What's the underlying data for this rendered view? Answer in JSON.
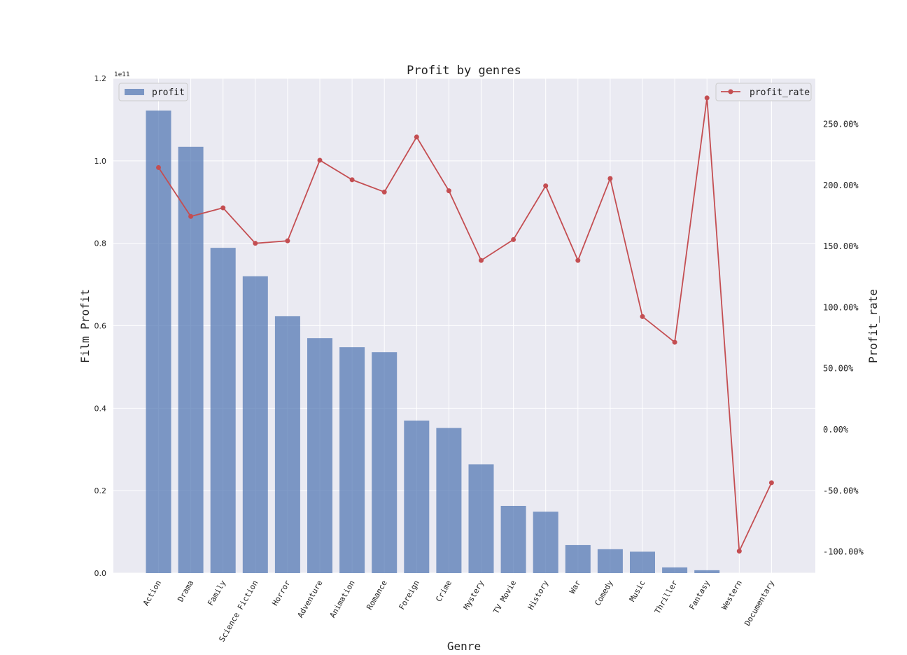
{
  "chart_data": {
    "type": "bar",
    "title": "Profit by genres",
    "xlabel": "Genre",
    "ylabel": "Film Profit",
    "y2label": "Profit_rate",
    "y_offset_text": "1e11",
    "categories": [
      "Action",
      "Drama",
      "Family",
      "Science Fiction",
      "Horror",
      "Adventure",
      "Animation",
      "Romance",
      "Foreign",
      "Crime",
      "Mystery",
      "TV Movie",
      "History",
      "War",
      "Comedy",
      "Music",
      "Thriller",
      "Fantasy",
      "Western",
      "Documentary"
    ],
    "series": [
      {
        "name": "profit",
        "kind": "bar",
        "axis": "left",
        "color": "#4c72b0",
        "values": [
          112200000000.0,
          103400000000.0,
          78900000000.0,
          72000000000.0,
          62300000000.0,
          57000000000.0,
          54800000000.0,
          53600000000.0,
          37000000000.0,
          35200000000.0,
          26400000000.0,
          16300000000.0,
          14900000000.0,
          6800000000.0,
          5800000000.0,
          5200000000.0,
          1400000000.0,
          700000000.0,
          0.0,
          0.0
        ]
      },
      {
        "name": "profit_rate",
        "kind": "line",
        "axis": "right",
        "color": "#c44e52",
        "values": [
          2.14,
          1.74,
          1.81,
          1.52,
          1.54,
          2.2,
          2.04,
          1.94,
          2.39,
          1.95,
          1.38,
          1.55,
          1.99,
          1.38,
          2.05,
          0.92,
          0.71,
          2.71,
          -1.0,
          -0.44
        ]
      }
    ],
    "ylim": [
      0,
      120000000000.0
    ],
    "y_ticks": [
      "0.0",
      "0.2",
      "0.4",
      "0.6",
      "0.8",
      "1.0",
      "1.2"
    ],
    "y2lim": [
      -1.18,
      2.87
    ],
    "y2_ticks": [
      {
        "value": -1.0,
        "label": "-100.00%"
      },
      {
        "value": -0.5,
        "label": "-50.00%"
      },
      {
        "value": 0.0,
        "label": "0.00%"
      },
      {
        "value": 0.5,
        "label": "50.00%"
      },
      {
        "value": 1.0,
        "label": "100.00%"
      },
      {
        "value": 1.5,
        "label": "150.00%"
      },
      {
        "value": 2.0,
        "label": "200.00%"
      },
      {
        "value": 2.5,
        "label": "250.00%"
      }
    ],
    "grid": true,
    "legend_left": "top-left",
    "legend_right": "top-right",
    "background": "#eaeaf2"
  }
}
